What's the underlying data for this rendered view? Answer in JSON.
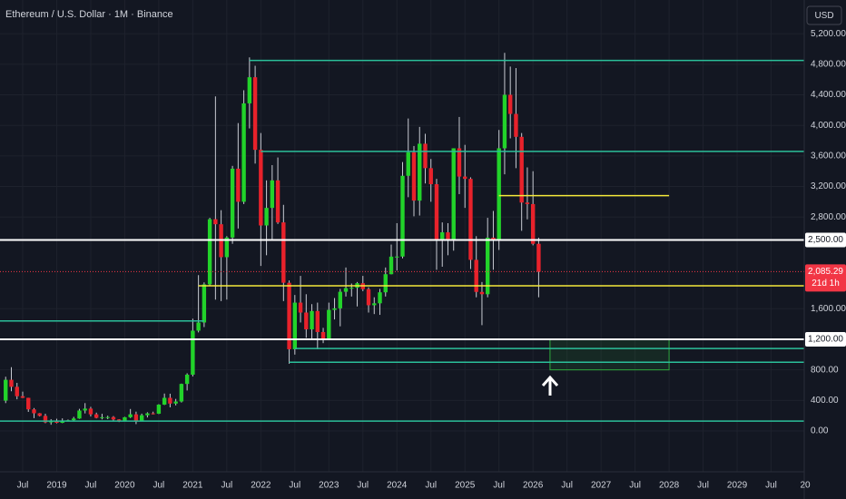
{
  "chart_data": {
    "type": "candlestick",
    "title": "Ethereum / U.S. Dollar · 1M · Binance",
    "currency": "USD",
    "x": [
      "2018-04",
      "2018-05",
      "2018-06",
      "2018-07",
      "2018-08",
      "2018-09",
      "2018-10",
      "2018-11",
      "2018-12",
      "2019-01",
      "2019-02",
      "2019-03",
      "2019-04",
      "2019-05",
      "2019-06",
      "2019-07",
      "2019-08",
      "2019-09",
      "2019-10",
      "2019-11",
      "2019-12",
      "2020-01",
      "2020-02",
      "2020-03",
      "2020-04",
      "2020-05",
      "2020-06",
      "2020-07",
      "2020-08",
      "2020-09",
      "2020-10",
      "2020-11",
      "2020-12",
      "2021-01",
      "2021-02",
      "2021-03",
      "2021-04",
      "2021-05",
      "2021-06",
      "2021-07",
      "2021-08",
      "2021-09",
      "2021-10",
      "2021-11",
      "2021-12",
      "2022-01",
      "2022-02",
      "2022-03",
      "2022-04",
      "2022-05",
      "2022-06",
      "2022-07",
      "2022-08",
      "2022-09",
      "2022-10",
      "2022-11",
      "2022-12",
      "2023-01",
      "2023-02",
      "2023-03",
      "2023-04",
      "2023-05",
      "2023-06",
      "2023-07",
      "2023-08",
      "2023-09",
      "2023-10",
      "2023-11",
      "2023-12",
      "2024-01",
      "2024-02",
      "2024-03",
      "2024-04",
      "2024-05",
      "2024-06",
      "2024-07",
      "2024-08",
      "2024-09",
      "2024-10",
      "2024-11",
      "2024-12",
      "2025-01",
      "2025-02",
      "2025-03",
      "2025-04",
      "2025-05",
      "2025-06",
      "2025-07",
      "2025-08",
      "2025-09",
      "2025-10",
      "2025-11",
      "2025-12",
      "2026-01",
      "2026-02"
    ],
    "series": [
      {
        "up_color": "#22d32a",
        "down_color": "#e8222b",
        "wick_color": "#c8cbd3",
        "open": [
          397,
          670,
          578,
          455,
          434,
          283,
          232,
          198,
          113,
          133,
          107,
          136,
          141,
          163,
          268,
          293,
          218,
          172,
          180,
          182,
          151,
          130,
          180,
          218,
          133,
          206,
          231,
          226,
          345,
          434,
          359,
          386,
          616,
          737,
          1313,
          1420,
          1919,
          2772,
          2706,
          2275,
          2532,
          3433,
          3000,
          4288,
          4630,
          3680,
          2690,
          2920,
          3280,
          2730,
          1940,
          1070,
          1680,
          1550,
          1330,
          1570,
          1295,
          1196,
          1585,
          1605,
          1822,
          1870,
          1875,
          1934,
          1856,
          1646,
          1671,
          1815,
          2052,
          2282,
          2283,
          3340,
          3647,
          3015,
          3760,
          3440,
          3230,
          2510,
          2600,
          2510,
          3700,
          3330,
          3300,
          2240,
          1820,
          1790,
          2530,
          2490,
          3700,
          4400,
          4150,
          3850,
          2990,
          2970,
          2450
        ],
        "high": [
          710,
          835,
          630,
          515,
          435,
          300,
          235,
          225,
          155,
          160,
          165,
          150,
          185,
          290,
          365,
          316,
          240,
          225,
          200,
          195,
          155,
          185,
          288,
          253,
          227,
          245,
          253,
          350,
          490,
          488,
          420,
          620,
          755,
          1470,
          2040,
          1945,
          2790,
          4380,
          2890,
          2550,
          3470,
          4030,
          4460,
          4890,
          4780,
          3900,
          3280,
          3480,
          3580,
          2960,
          1970,
          1780,
          2030,
          1790,
          1660,
          1680,
          1350,
          1680,
          1740,
          1860,
          2140,
          1930,
          1950,
          2030,
          1880,
          1750,
          1860,
          2140,
          2440,
          2720,
          3520,
          4090,
          3730,
          3980,
          3890,
          3560,
          3300,
          2730,
          2720,
          3700,
          4110,
          3745,
          3320,
          2550,
          1950,
          2790,
          2880,
          3940,
          4950,
          4770,
          4750,
          3900,
          3450,
          3400,
          2530
        ],
        "low": [
          365,
          520,
          415,
          430,
          250,
          168,
          190,
          102,
          82,
          100,
          103,
          126,
          137,
          159,
          230,
          190,
          165,
          152,
          155,
          137,
          117,
          126,
          170,
          90,
          130,
          177,
          216,
          222,
          340,
          309,
          335,
          373,
          530,
          714,
          1290,
          1360,
          1900,
          1720,
          1700,
          1720,
          2450,
          2650,
          2970,
          3960,
          3500,
          2160,
          2300,
          2500,
          2710,
          1700,
          880,
          1000,
          1420,
          1220,
          1190,
          1070,
          1150,
          1190,
          1460,
          1370,
          1760,
          1760,
          1630,
          1830,
          1550,
          1530,
          1520,
          1760,
          2050,
          2100,
          2260,
          3060,
          2810,
          2820,
          3240,
          3000,
          2110,
          2150,
          2300,
          2360,
          3100,
          2920,
          2120,
          1750,
          1385,
          1750,
          2110,
          2370,
          3360,
          3830,
          3440,
          2620,
          2770,
          2430,
          1750
        ],
        "close": [
          670,
          578,
          455,
          434,
          283,
          232,
          198,
          113,
          133,
          107,
          136,
          141,
          163,
          268,
          293,
          218,
          172,
          180,
          182,
          151,
          130,
          180,
          218,
          133,
          206,
          231,
          226,
          345,
          434,
          359,
          386,
          616,
          737,
          1313,
          1420,
          1919,
          2772,
          2706,
          2275,
          2532,
          3433,
          3000,
          4288,
          4630,
          3680,
          2690,
          2920,
          3280,
          2730,
          1940,
          1070,
          1680,
          1550,
          1330,
          1570,
          1295,
          1196,
          1585,
          1605,
          1822,
          1870,
          1875,
          1934,
          1856,
          1646,
          1671,
          1815,
          2052,
          2282,
          2283,
          3340,
          3647,
          3015,
          3760,
          3440,
          3230,
          2510,
          2600,
          2510,
          3700,
          3330,
          3300,
          2240,
          1820,
          1790,
          2530,
          2490,
          3700,
          4400,
          4150,
          3850,
          2990,
          2970,
          2450,
          2085.29
        ]
      }
    ],
    "last_label": "2,085.29",
    "countdown": "21d 1h",
    "last_color": "#f23645",
    "xlim": [
      "2018-03",
      "2030-01"
    ],
    "xticks": [
      {
        "value": "2018-07",
        "label": "Jul"
      },
      {
        "value": "2019-01",
        "label": "2019"
      },
      {
        "value": "2019-07",
        "label": "Jul"
      },
      {
        "value": "2020-01",
        "label": "2020"
      },
      {
        "value": "2020-07",
        "label": "Jul"
      },
      {
        "value": "2021-01",
        "label": "2021"
      },
      {
        "value": "2021-07",
        "label": "Jul"
      },
      {
        "value": "2022-01",
        "label": "2022"
      },
      {
        "value": "2022-07",
        "label": "Jul"
      },
      {
        "value": "2023-01",
        "label": "2023"
      },
      {
        "value": "2023-07",
        "label": "Jul"
      },
      {
        "value": "2024-01",
        "label": "2024"
      },
      {
        "value": "2024-07",
        "label": "Jul"
      },
      {
        "value": "2025-01",
        "label": "2025"
      },
      {
        "value": "2025-07",
        "label": "Jul"
      },
      {
        "value": "2026-01",
        "label": "2026"
      },
      {
        "value": "2026-07",
        "label": "Jul"
      },
      {
        "value": "2027-01",
        "label": "2027"
      },
      {
        "value": "2027-07",
        "label": "Jul"
      },
      {
        "value": "2028-01",
        "label": "2028"
      },
      {
        "value": "2028-07",
        "label": "Jul"
      },
      {
        "value": "2029-01",
        "label": "2029"
      },
      {
        "value": "2029-07",
        "label": "Jul"
      },
      {
        "value": "2030-01",
        "label": "20"
      }
    ],
    "ylim": [
      -534,
      5641
    ],
    "yticks": [
      {
        "value": 0,
        "label": "0.00"
      },
      {
        "value": 400,
        "label": "400.00"
      },
      {
        "value": 800,
        "label": "800.00"
      },
      {
        "value": 1600,
        "label": "1,600.00"
      },
      {
        "value": 2800,
        "label": "2,800.00"
      },
      {
        "value": 3200,
        "label": "3,200.00"
      },
      {
        "value": 3600,
        "label": "3,600.00"
      },
      {
        "value": 4000,
        "label": "4,000.00"
      },
      {
        "value": 4400,
        "label": "4,400.00"
      },
      {
        "value": 4800,
        "label": "4,800.00"
      },
      {
        "value": 5200,
        "label": "5,200.00"
      }
    ],
    "grid": true,
    "lines": [
      {
        "value": 4850,
        "color": "#2bbf9a",
        "from": "2021-11"
      },
      {
        "value": 3660,
        "color": "#2bbf9a",
        "from": "2022-01"
      },
      {
        "value": 3080,
        "color": "#f5e93b",
        "from": "2025-07",
        "to": "2028-01"
      },
      {
        "value": 2500,
        "color": "#ffffff",
        "label": "2,500.00"
      },
      {
        "value": 1900,
        "color": "#f5e93b",
        "from": "2021-02"
      },
      {
        "value": 1440,
        "color": "#2bbf9a",
        "to": "2021-03"
      },
      {
        "value": 1200,
        "color": "#ffffff",
        "label": "1,200.00"
      },
      {
        "value": 1080,
        "color": "#2bbf9a",
        "from": "2022-07"
      },
      {
        "value": 900,
        "color": "#2bbf9a",
        "from": "2022-06"
      },
      {
        "value": 130,
        "color": "#2bbf9a"
      }
    ],
    "zone": {
      "from": "2026-04",
      "to": "2028-01",
      "top": 1200,
      "bottom": 800,
      "color": "#2eaa3c"
    }
  }
}
